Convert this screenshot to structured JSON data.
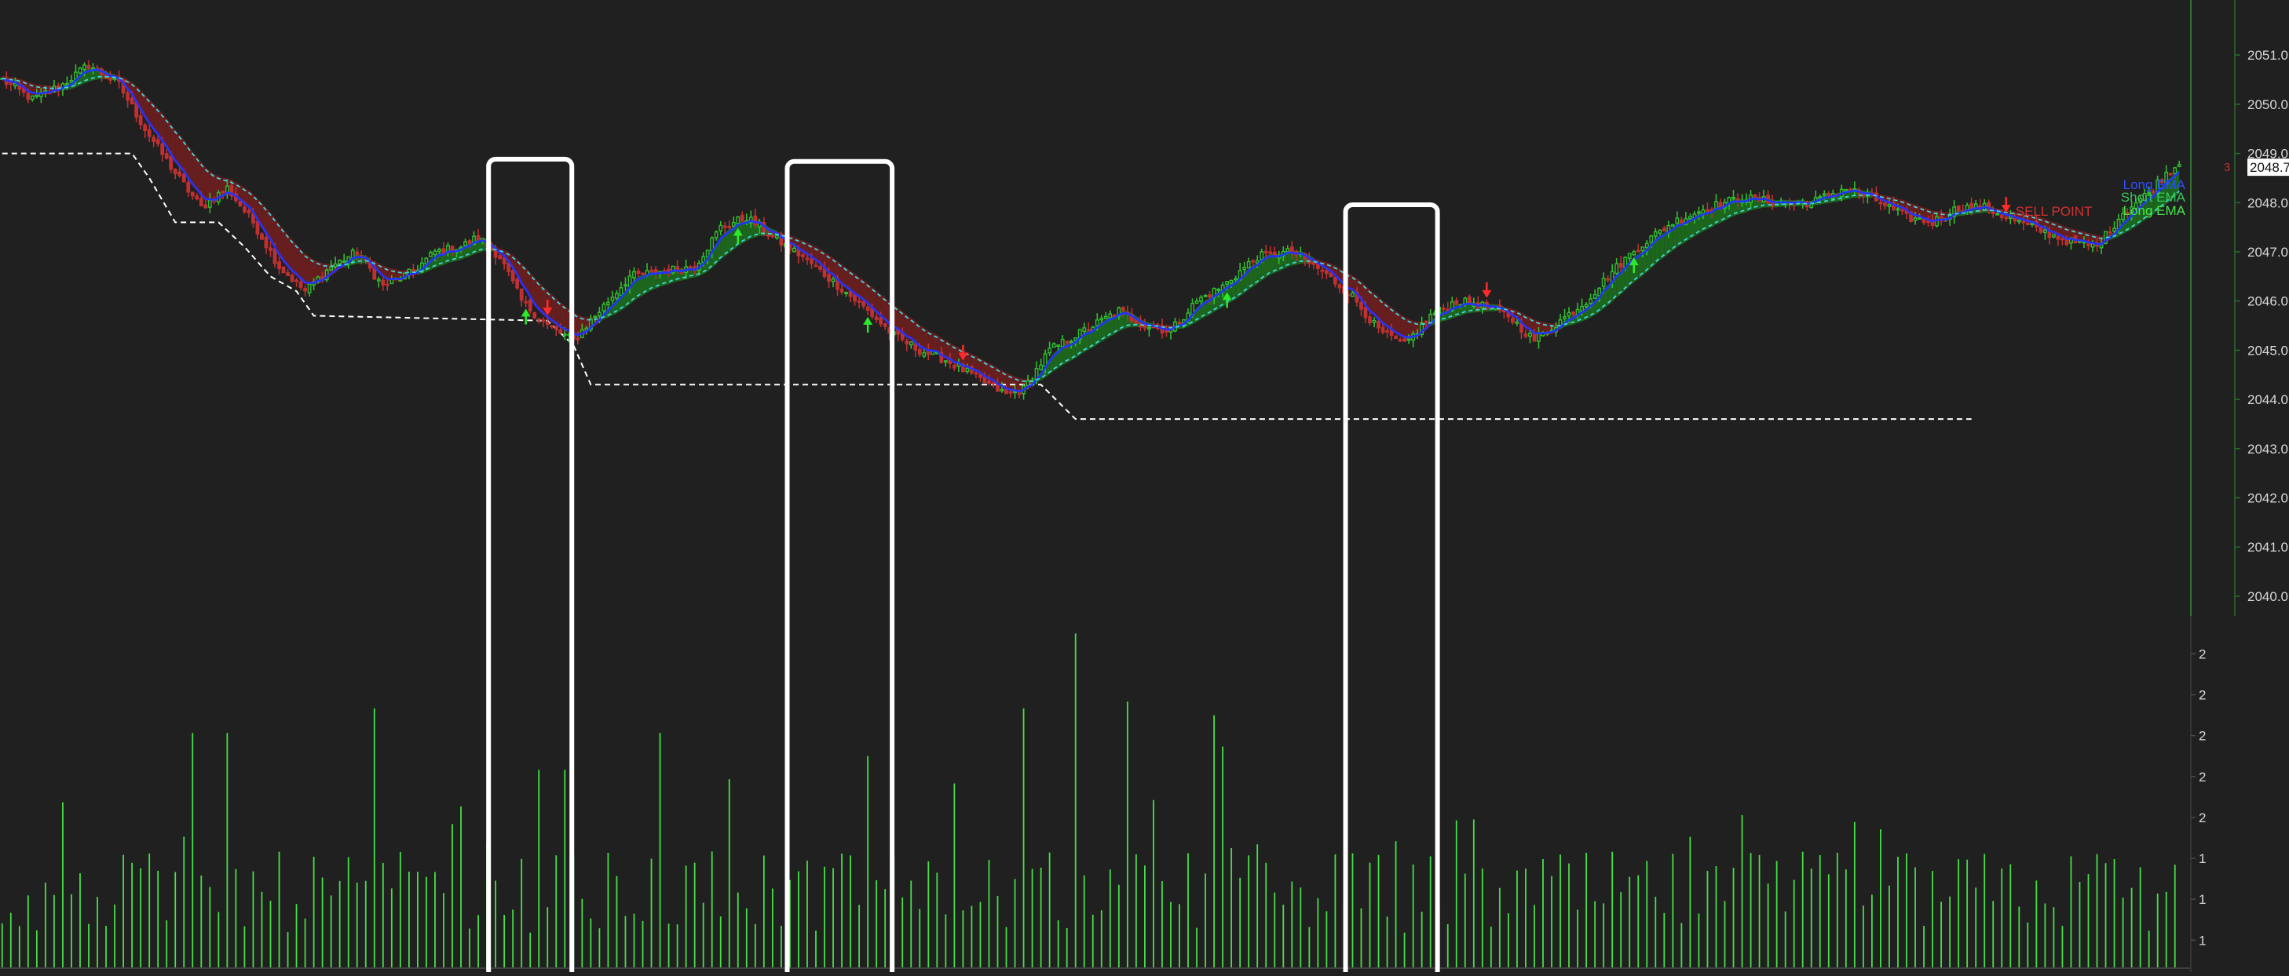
{
  "chart_data": {
    "type": "candlestick",
    "price_axis": {
      "ticks": [
        "2051.0",
        "2050.0",
        "2049.0",
        "2048.0",
        "2047.0",
        "2046.0",
        "2045.0",
        "2044.0",
        "2043.0",
        "2042.0",
        "2041.0",
        "2040.0"
      ],
      "ylim": [
        2039.6,
        2051.8
      ],
      "last_price_label": "2048.7",
      "last_price_value": 2048.72,
      "side_marker": "3"
    },
    "volume_axis": {
      "ticks": [
        "2",
        "2",
        "2",
        "2",
        "2",
        "1",
        "1",
        "1"
      ],
      "ylim": [
        0,
        2.55
      ]
    },
    "legend": [
      "Long EMA",
      "Short EMA",
      "Long EMA"
    ],
    "legend_colors": [
      "#2b4dff",
      "#36c85a",
      "#46e646"
    ],
    "annotations": {
      "sell_point_label": "SELL POINT"
    },
    "colors": {
      "bull": "#2fbf2f",
      "bear": "#c03030",
      "short_ema": "#2233ff",
      "long_ema": "#3fd6e0",
      "cloud_bear": "#6b1f1f",
      "cloud_bull": "#1e6a1e",
      "volume": "#46e046",
      "buy_arrow": "#2ee82e",
      "sell_arrow": "#ff2a2a",
      "stop_line": "#ffffff",
      "highlight_box": "#ffffff"
    },
    "price_keypoints": [
      [
        0,
        2050.5
      ],
      [
        7,
        2050.1
      ],
      [
        14,
        2050.4
      ],
      [
        20,
        2050.8
      ],
      [
        27,
        2050.4
      ],
      [
        33,
        2049.5
      ],
      [
        40,
        2048.6
      ],
      [
        46,
        2047.9
      ],
      [
        52,
        2048.3
      ],
      [
        58,
        2047.6
      ],
      [
        64,
        2046.7
      ],
      [
        70,
        2046.2
      ],
      [
        76,
        2046.7
      ],
      [
        82,
        2047.0
      ],
      [
        88,
        2046.3
      ],
      [
        95,
        2046.6
      ],
      [
        100,
        2047.0
      ],
      [
        106,
        2047.1
      ],
      [
        110,
        2047.3
      ],
      [
        115,
        2046.9
      ],
      [
        120,
        2046.0
      ],
      [
        126,
        2045.5
      ],
      [
        132,
        2045.2
      ],
      [
        138,
        2045.8
      ],
      [
        145,
        2046.5
      ],
      [
        152,
        2046.6
      ],
      [
        160,
        2046.7
      ],
      [
        166,
        2047.5
      ],
      [
        172,
        2047.7
      ],
      [
        178,
        2047.3
      ],
      [
        185,
        2046.9
      ],
      [
        192,
        2046.4
      ],
      [
        200,
        2045.8
      ],
      [
        206,
        2045.3
      ],
      [
        212,
        2045.0
      ],
      [
        218,
        2044.8
      ],
      [
        226,
        2044.4
      ],
      [
        232,
        2044.1
      ],
      [
        236,
        2044.2
      ],
      [
        242,
        2045.0
      ],
      [
        250,
        2045.4
      ],
      [
        258,
        2045.8
      ],
      [
        264,
        2045.5
      ],
      [
        270,
        2045.4
      ],
      [
        276,
        2046.0
      ],
      [
        282,
        2046.3
      ],
      [
        290,
        2046.9
      ],
      [
        298,
        2047.0
      ],
      [
        305,
        2046.6
      ],
      [
        312,
        2046.1
      ],
      [
        318,
        2045.4
      ],
      [
        324,
        2045.1
      ],
      [
        330,
        2045.7
      ],
      [
        336,
        2046.0
      ],
      [
        342,
        2045.9
      ],
      [
        348,
        2045.7
      ],
      [
        354,
        2045.2
      ],
      [
        360,
        2045.6
      ],
      [
        366,
        2046.0
      ],
      [
        372,
        2046.6
      ],
      [
        378,
        2047.1
      ],
      [
        386,
        2047.6
      ],
      [
        394,
        2047.9
      ],
      [
        402,
        2048.1
      ],
      [
        410,
        2048.0
      ],
      [
        418,
        2048.0
      ],
      [
        426,
        2048.3
      ],
      [
        434,
        2048.0
      ],
      [
        440,
        2047.7
      ],
      [
        446,
        2047.6
      ],
      [
        452,
        2047.9
      ],
      [
        458,
        2047.9
      ],
      [
        466,
        2047.6
      ],
      [
        472,
        2047.4
      ],
      [
        478,
        2047.2
      ],
      [
        484,
        2047.1
      ],
      [
        490,
        2047.8
      ],
      [
        496,
        2048.2
      ],
      [
        500,
        2048.6
      ],
      [
        503,
        2048.8
      ]
    ],
    "stop_levels": [
      [
        0,
        2049.0
      ],
      [
        30,
        2049.0
      ],
      [
        34,
        2048.5
      ],
      [
        40,
        2047.6
      ],
      [
        50,
        2047.6
      ],
      [
        56,
        2047.1
      ],
      [
        62,
        2046.5
      ],
      [
        68,
        2046.2
      ],
      [
        72,
        2045.7
      ],
      [
        126,
        2045.6
      ],
      [
        132,
        2045.1
      ],
      [
        136,
        2044.3
      ],
      [
        240,
        2044.3
      ],
      [
        248,
        2043.6
      ],
      [
        455,
        2043.6
      ]
    ],
    "buy_signals": [
      121,
      170,
      200,
      283,
      377
    ],
    "sell_signals": [
      126,
      222,
      343,
      463
    ],
    "sell_point_index": 463,
    "highlight_windows": [
      {
        "from": 113,
        "to": 131
      },
      {
        "from": 182,
        "to": 205
      },
      {
        "from": 311,
        "to": 331
      }
    ],
    "volume_spikes": [
      {
        "index": 248,
        "value": 2.45
      },
      {
        "index": 260,
        "value": 1.95
      },
      {
        "index": 86,
        "value": 1.9
      },
      {
        "index": 281,
        "value": 1.85
      },
      {
        "index": 237,
        "value": 1.9
      },
      {
        "index": 44,
        "value": 1.72
      },
      {
        "index": 53,
        "value": 1.72
      },
      {
        "index": 152,
        "value": 1.72
      },
      {
        "index": 283,
        "value": 1.62
      },
      {
        "index": 200,
        "value": 1.55
      },
      {
        "index": 124,
        "value": 1.45
      },
      {
        "index": 131,
        "value": 1.45
      },
      {
        "index": 220,
        "value": 1.35
      }
    ]
  }
}
